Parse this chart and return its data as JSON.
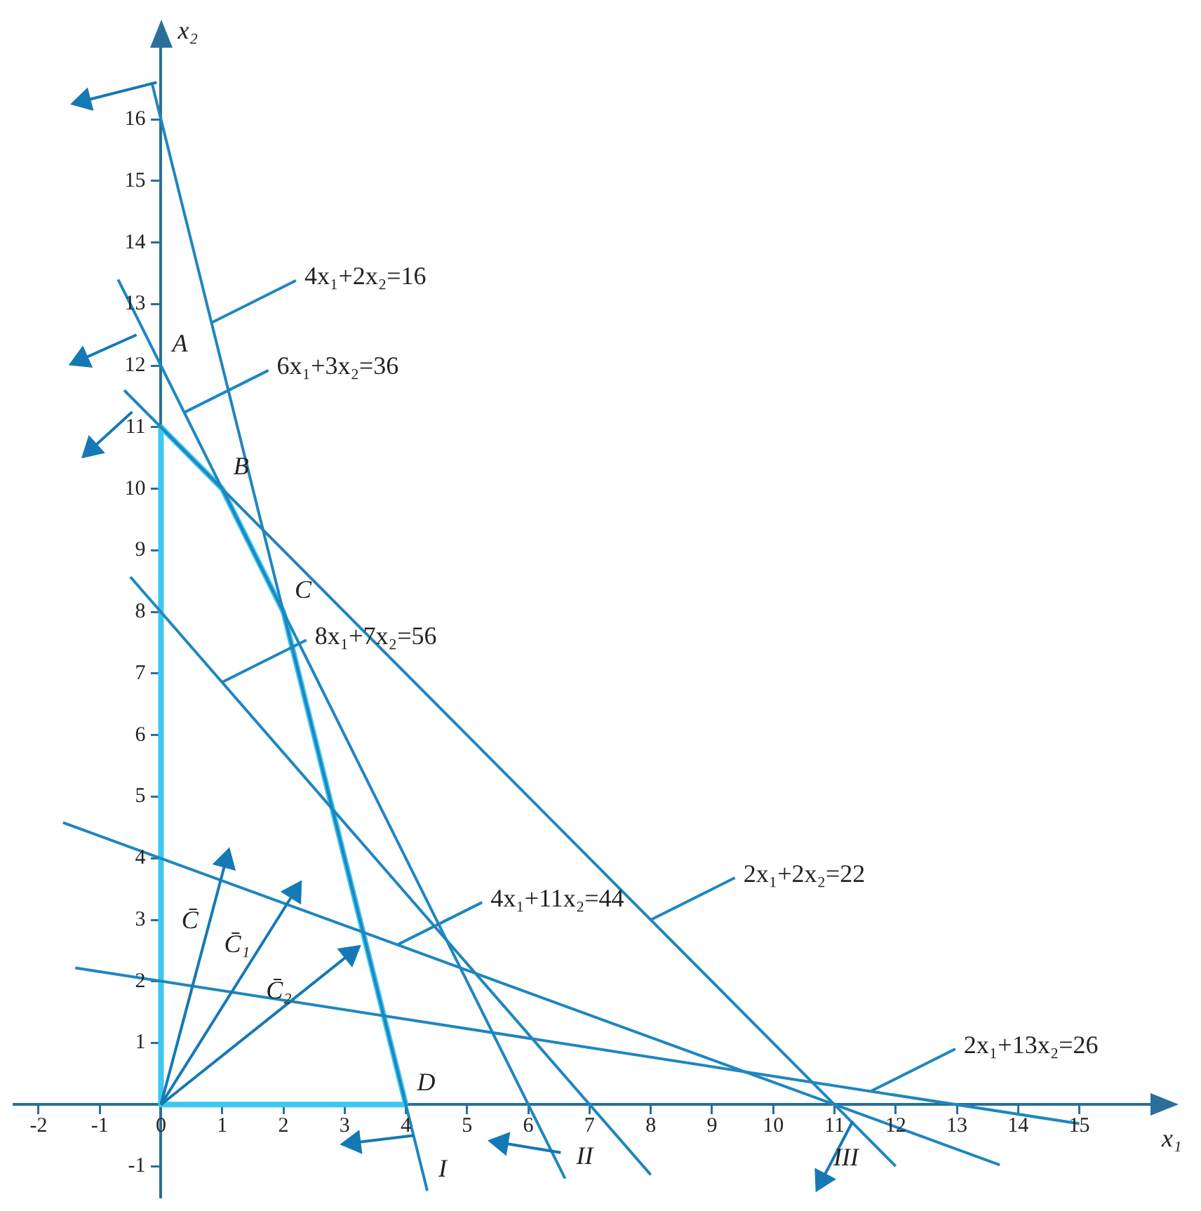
{
  "chart_data": {
    "type": "line",
    "xlabel": "x₁",
    "ylabel": "x₂",
    "xlim": [
      -2.4,
      16.3
    ],
    "ylim": [
      -1.5,
      17.3
    ],
    "xticks": [
      -2,
      -1,
      0,
      1,
      2,
      3,
      4,
      5,
      6,
      7,
      8,
      9,
      10,
      11,
      12,
      13,
      14,
      15
    ],
    "yticks": [
      -1,
      {
        "value": 0,
        "label": null
      },
      1,
      2,
      3,
      4,
      5,
      6,
      7,
      8,
      9,
      10,
      11,
      12,
      13,
      14,
      15,
      16
    ],
    "grid": false,
    "legend": false,
    "series": [
      {
        "color": "#3cc8f0",
        "x": [
          0,
          0,
          4
        ],
        "values": [
          11,
          0,
          0
        ]
      },
      {
        "color": "#3cc8f0",
        "x": [
          0,
          1,
          2,
          4
        ],
        "values": [
          11,
          10,
          8,
          0
        ]
      },
      {
        "color": "#1f86bf",
        "x": [
          -0.15,
          4.35
        ],
        "values": [
          16.6,
          -1.4
        ]
      },
      {
        "color": "#1f86bf",
        "x": [
          -0.7,
          6.6
        ],
        "values": [
          13.4,
          -1.2
        ]
      },
      {
        "color": "#1f86bf",
        "x": [
          -0.6,
          12.0
        ],
        "values": [
          11.6,
          -1.0
        ]
      },
      {
        "color": "#1f86bf",
        "x": [
          -0.5,
          8.0
        ],
        "values": [
          8.57,
          -1.14
        ]
      },
      {
        "color": "#1f86bf",
        "x": [
          -1.6,
          13.7
        ],
        "values": [
          4.58,
          -0.98
        ]
      },
      {
        "color": "#1f86bf",
        "x": [
          -1.4,
          15.0
        ],
        "values": [
          2.22,
          -0.31
        ]
      },
      {
        "name": "C̄",
        "color": "#1479b5",
        "marker": "triangle",
        "x": [
          0,
          1.06
        ],
        "values": [
          0,
          3.96
        ]
      },
      {
        "name": "C̄₁",
        "color": "#1479b5",
        "marker": "triangle",
        "x": [
          0,
          2.18
        ],
        "values": [
          0,
          3.45
        ]
      },
      {
        "name": "C̄₂",
        "color": "#1479b5",
        "marker": "triangle",
        "x": [
          0,
          3.09
        ],
        "values": [
          0,
          2.45
        ]
      },
      {
        "color": "#1479b5",
        "marker": "triangle",
        "x": [
          -0.07,
          -1.26
        ],
        "values": [
          16.6,
          16.3
        ]
      },
      {
        "color": "#1479b5",
        "marker": "triangle",
        "x": [
          -0.4,
          -1.3
        ],
        "values": [
          12.5,
          12.1
        ]
      },
      {
        "color": "#1479b5",
        "marker": "triangle",
        "x": [
          -0.47,
          -1.13
        ],
        "values": [
          11.25,
          10.65
        ]
      },
      {
        "color": "#1479b5",
        "marker": "triangle",
        "x": [
          4.14,
          3.15
        ],
        "values": [
          -0.5,
          -0.62
        ]
      },
      {
        "color": "#1479b5",
        "marker": "triangle",
        "x": [
          6.53,
          5.56
        ],
        "values": [
          -0.78,
          -0.62
        ]
      },
      {
        "color": "#1479b5",
        "marker": "triangle",
        "x": [
          11.3,
          10.8
        ],
        "values": [
          -0.27,
          -1.22
        ]
      }
    ],
    "annotations": [
      {
        "text": "4x₁+2x₂=16",
        "x": 0.83,
        "y": 12.7
      },
      {
        "text": "6x₁+3x₂=36",
        "x": 0.38,
        "y": 11.24
      },
      {
        "text": "8x₁+7x₂=56",
        "x": 1.0,
        "y": 6.86
      },
      {
        "text": "4x₁+11x₂=44",
        "x": 3.87,
        "y": 2.6
      },
      {
        "text": "2x₁+2x₂=22",
        "x": 8.0,
        "y": 3.0
      },
      {
        "text": "2x₁+13x₂=26",
        "x": 11.6,
        "y": 0.22
      },
      {
        "text": "A",
        "x": 0,
        "y": 12
      },
      {
        "text": "B",
        "x": 1,
        "y": 10
      },
      {
        "text": "C",
        "x": 2,
        "y": 8
      },
      {
        "text": "D",
        "x": 4,
        "y": 0
      },
      {
        "text": "I",
        "x": 4.35,
        "y": -1.4
      },
      {
        "text": "II",
        "x": 6.6,
        "y": -1.2
      },
      {
        "text": "III",
        "x": 10.8,
        "y": -1.22
      }
    ]
  }
}
